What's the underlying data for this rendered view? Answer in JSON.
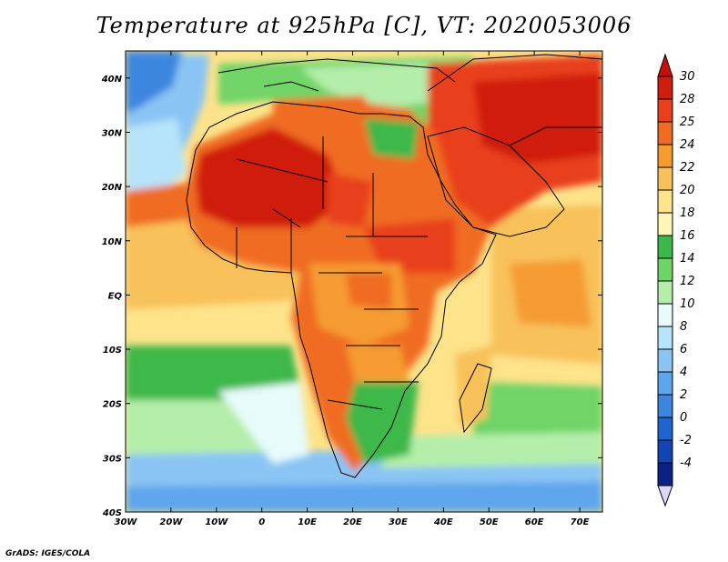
{
  "title": "Temperature at 925hPa [C], VT: 2020053006",
  "credit": "GrADS: IGES/COLA",
  "map": {
    "lon_range": [
      -30,
      75
    ],
    "lat_range": [
      -40,
      45
    ],
    "lon_ticks": [
      {
        "value": -30,
        "label": "30W"
      },
      {
        "value": -20,
        "label": "20W"
      },
      {
        "value": -10,
        "label": "10W"
      },
      {
        "value": 0,
        "label": "0"
      },
      {
        "value": 10,
        "label": "10E"
      },
      {
        "value": 20,
        "label": "20E"
      },
      {
        "value": 30,
        "label": "30E"
      },
      {
        "value": 40,
        "label": "40E"
      },
      {
        "value": 50,
        "label": "50E"
      },
      {
        "value": 60,
        "label": "60E"
      },
      {
        "value": 70,
        "label": "70E"
      }
    ],
    "lat_ticks": [
      {
        "value": 40,
        "label": "40N"
      },
      {
        "value": 30,
        "label": "30N"
      },
      {
        "value": 20,
        "label": "20N"
      },
      {
        "value": 10,
        "label": "10N"
      },
      {
        "value": 0,
        "label": "EQ"
      },
      {
        "value": -10,
        "label": "10S"
      },
      {
        "value": -20,
        "label": "20S"
      },
      {
        "value": -30,
        "label": "30S"
      },
      {
        "value": -40,
        "label": "40S"
      }
    ]
  },
  "colorbar": {
    "levels": [
      {
        "label": "30",
        "color": "#d01e0c"
      },
      {
        "label": "28",
        "color": "#e8401a"
      },
      {
        "label": "25",
        "color": "#f06c22"
      },
      {
        "label": "24",
        "color": "#f59b30"
      },
      {
        "label": "22",
        "color": "#f8c15a"
      },
      {
        "label": "20",
        "color": "#fde38a"
      },
      {
        "label": "18",
        "color": "#fdf6b4"
      },
      {
        "label": "16",
        "color": "#3cb84a"
      },
      {
        "label": "14",
        "color": "#6fd466"
      },
      {
        "label": "12",
        "color": "#b4eeaa"
      },
      {
        "label": "10",
        "color": "#e6fbfa"
      },
      {
        "label": "8",
        "color": "#b6e4fa"
      },
      {
        "label": "6",
        "color": "#8ac4f4"
      },
      {
        "label": "4",
        "color": "#5ea6ec"
      },
      {
        "label": "2",
        "color": "#3c86e0"
      },
      {
        "label": "0",
        "color": "#2064d0"
      },
      {
        "label": "-2",
        "color": "#1244b4"
      },
      {
        "label": "-4",
        "color": "#0a2282"
      }
    ],
    "top_color": "#c81008",
    "bottom_color": "#dcd8fa"
  }
}
